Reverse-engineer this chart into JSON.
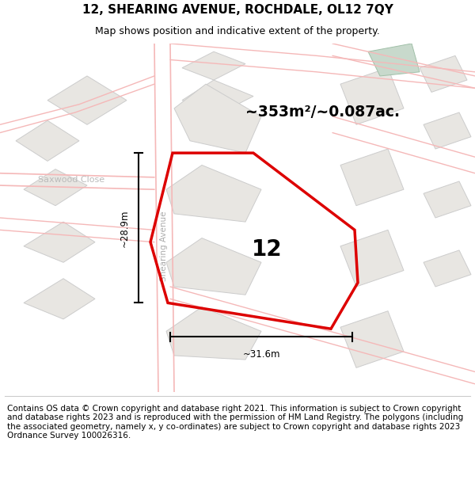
{
  "title": "12, SHEARING AVENUE, ROCHDALE, OL12 7QY",
  "subtitle": "Map shows position and indicative extent of the property.",
  "area_text": "~353m²/~0.087ac.",
  "property_number": "12",
  "width_label": "~31.6m",
  "height_label": "~28.9m",
  "street_label": "Shearing Avenue",
  "street_label2": "Saxwood Close",
  "footer": "Contains OS data © Crown copyright and database right 2021. This information is subject to Crown copyright and database rights 2023 and is reproduced with the permission of HM Land Registry. The polygons (including the associated geometry, namely x, y co-ordinates) are subject to Crown copyright and database rights 2023 Ordnance Survey 100026316.",
  "bg_color": "#ffffff",
  "map_bg": "#f8f7f5",
  "title_fontsize": 11,
  "subtitle_fontsize": 9,
  "footer_fontsize": 7.5,
  "red_color": "#dd0000",
  "road_color": "#f5b8b8",
  "bld_color": "#e8e6e2",
  "bld_edge": "#cccccc",
  "green_color": "#c8d9cc"
}
